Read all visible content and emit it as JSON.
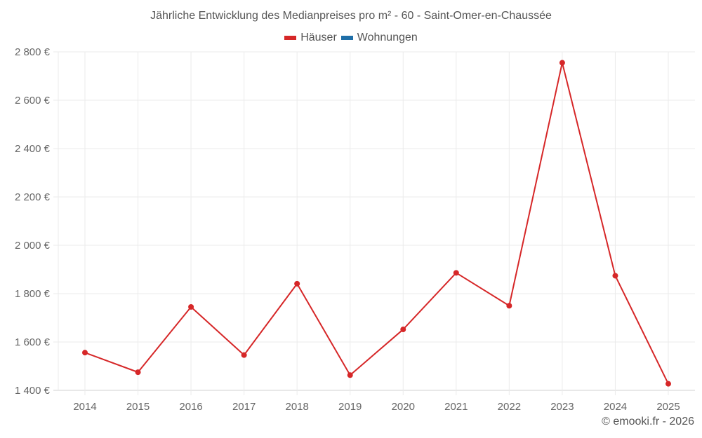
{
  "header": {
    "title": "Jährliche Entwicklung des Medianpreises pro m² - 60 - Saint-Omer-en-Chaussée"
  },
  "legend": [
    {
      "label": "Häuser",
      "color": "#d62728"
    },
    {
      "label": "Wohnungen",
      "color": "#1f6fa8"
    }
  ],
  "footer": {
    "credit": "© emooki.fr - 2026"
  },
  "chart_data": {
    "type": "line",
    "title": "Jährliche Entwicklung des Medianpreises pro m² - 60 - Saint-Omer-en-Chaussée",
    "xlabel": "",
    "ylabel": "",
    "categories": [
      "2014",
      "2015",
      "2016",
      "2017",
      "2018",
      "2019",
      "2020",
      "2021",
      "2022",
      "2023",
      "2024",
      "2025"
    ],
    "series": [
      {
        "name": "Häuser",
        "color": "#d62728",
        "values": [
          1556,
          1475,
          1745,
          1546,
          1841,
          1463,
          1652,
          1886,
          1750,
          2755,
          1874,
          1427
        ]
      },
      {
        "name": "Wohnungen",
        "color": "#1f6fa8",
        "values": []
      }
    ],
    "ylim": [
      1400,
      2800
    ],
    "yticks": [
      1400,
      1600,
      1800,
      2000,
      2200,
      2400,
      2600,
      2800
    ],
    "ytick_labels": [
      "1 400 €",
      "1 600 €",
      "1 800 €",
      "2 000 €",
      "2 200 €",
      "2 400 €",
      "2 600 €",
      "2 800 €"
    ],
    "grid": true,
    "legend_position": "top"
  }
}
